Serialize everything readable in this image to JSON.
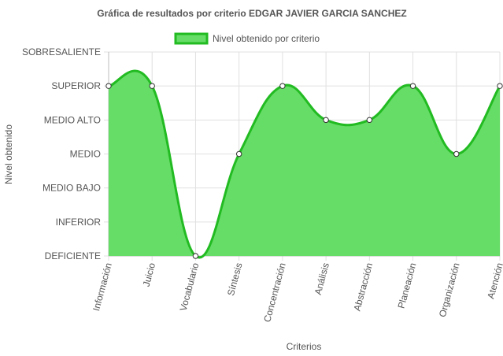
{
  "chart_data": {
    "type": "area",
    "title": "Gráfica de resultados por criterio EDGAR JAVIER GARCIA SANCHEZ",
    "xlabel": "Criterios",
    "ylabel": "Nivel obtenido",
    "categories": [
      "Información",
      "Juicio",
      "Vocabulario",
      "Síntesis",
      "Concentración",
      "Análisis",
      "Abstracción",
      "Planeación",
      "Organización",
      "Atención"
    ],
    "y_levels": [
      "DEFICIENTE",
      "INFERIOR",
      "MEDIO BAJO",
      "MEDIO",
      "MEDIO ALTO",
      "SUPERIOR",
      "SOBRESALIENTE"
    ],
    "ylim": [
      0,
      6
    ],
    "grid": true,
    "legend_position": "top-center",
    "series": [
      {
        "name": "Nivel obtenido por criterio",
        "values": [
          5,
          5,
          0,
          3,
          5,
          4,
          4,
          5,
          3,
          5
        ],
        "fill_color": "#66dd66",
        "line_color": "#22bb22"
      }
    ]
  }
}
